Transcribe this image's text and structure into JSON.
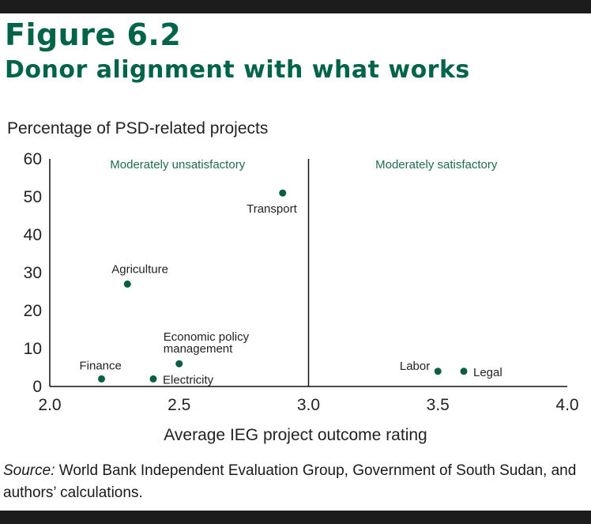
{
  "figure_number": "Figure 6.2",
  "figure_title": "Donor alignment with what works",
  "source": {
    "label": "Source:",
    "text": " World Bank Independent Evaluation Group, Government of South Sudan, and authors’ calculations."
  },
  "colors": {
    "accent": "#00634a",
    "marker": "#0b5e45",
    "region_text": "#1f6b54",
    "bar": "#1c1c1c"
  },
  "chart_data": {
    "type": "scatter",
    "xlabel": "Average IEG project outcome rating",
    "ylabel": "Percentage of PSD-related projects",
    "xlim": [
      2.0,
      4.0
    ],
    "ylim": [
      0,
      60
    ],
    "x_ticks": [
      "2.0",
      "2.5",
      "3.0",
      "3.5",
      "4.0"
    ],
    "y_ticks": [
      "0",
      "10",
      "20",
      "30",
      "40",
      "50",
      "60"
    ],
    "divider_x": 3.0,
    "regions": [
      {
        "label": "Moderately unsatisfactory",
        "center_x": 2.5
      },
      {
        "label": "Moderately satisfactory",
        "center_x": 3.5
      }
    ],
    "points": [
      {
        "name": "Transport",
        "x": 2.9,
        "y": 51,
        "label_position": "below-left"
      },
      {
        "name": "Agriculture",
        "x": 2.3,
        "y": 27,
        "label_position": "above"
      },
      {
        "name": "Economic policy management",
        "lines": [
          "Economic policy",
          "management"
        ],
        "x": 2.5,
        "y": 6,
        "label_position": "above"
      },
      {
        "name": "Finance",
        "x": 2.2,
        "y": 2,
        "label_position": "above-left"
      },
      {
        "name": "Electricity",
        "x": 2.4,
        "y": 2,
        "label_position": "right"
      },
      {
        "name": "Labor",
        "x": 3.5,
        "y": 4,
        "label_position": "left"
      },
      {
        "name": "Legal",
        "x": 3.6,
        "y": 4,
        "label_position": "right"
      }
    ]
  }
}
